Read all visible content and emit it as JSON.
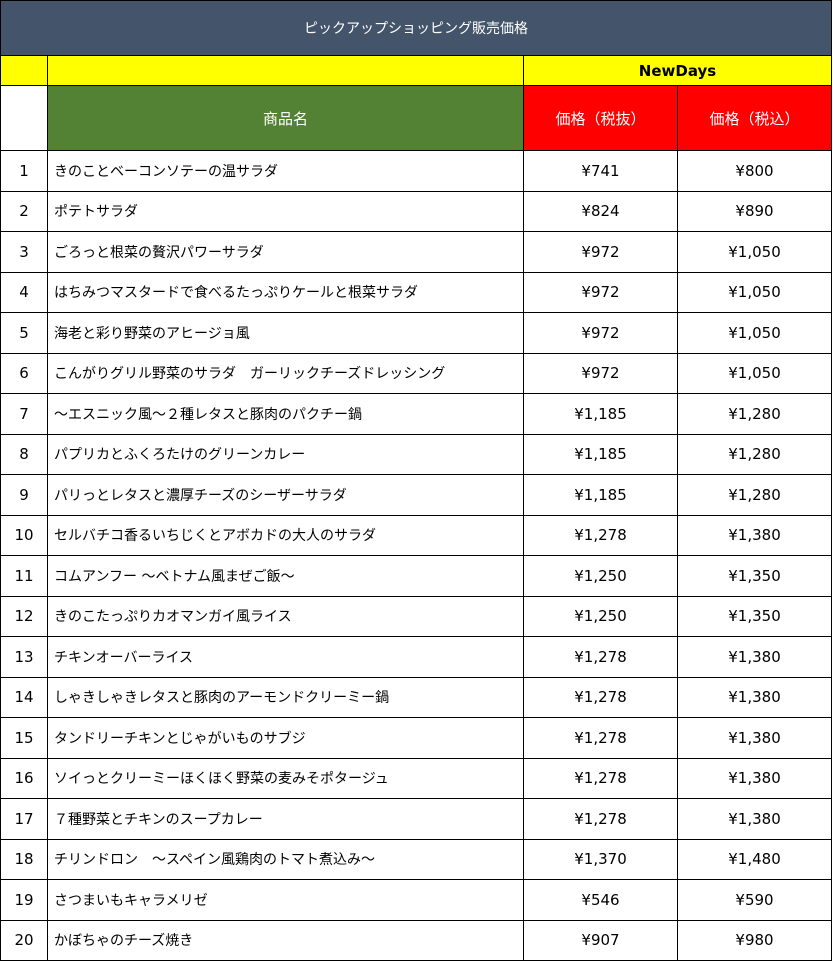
{
  "title": "ピックアップショッピング販売価格",
  "group_header": "NewDays",
  "headers": {
    "name": "商品名",
    "price_excl": "価格（税抜）",
    "price_incl": "価格（税込）"
  },
  "rows": [
    [
      "1",
      "きのことベーコンソテーの温サラダ",
      "¥741",
      "¥800"
    ],
    [
      "2",
      "ポテトサラダ",
      "¥824",
      "¥890"
    ],
    [
      "3",
      "ごろっと根菜の贅沢パワーサラダ",
      "¥972",
      "¥1,050"
    ],
    [
      "4",
      "はちみつマスタードで食べるたっぷりケールと根菜サラダ",
      "¥972",
      "¥1,050"
    ],
    [
      "5",
      "海老と彩り野菜のアヒージョ風",
      "¥972",
      "¥1,050"
    ],
    [
      "6",
      "こんがりグリル野菜のサラダ　ガーリックチーズドレッシング",
      "¥972",
      "¥1,050"
    ],
    [
      "7",
      "～エスニック風～２種レタスと豚肉のパクチー鍋",
      "¥1,185",
      "¥1,280"
    ],
    [
      "8",
      "パプリカとふくろたけのグリーンカレー",
      "¥1,185",
      "¥1,280"
    ],
    [
      "9",
      "パリっとレタスと濃厚チーズのシーザーサラダ",
      "¥1,185",
      "¥1,280"
    ],
    [
      "10",
      "セルバチコ香るいちじくとアボカドの大人のサラダ",
      "¥1,278",
      "¥1,380"
    ],
    [
      "11",
      "コムアンフー ～ベトナム風まぜご飯～",
      "¥1,250",
      "¥1,350"
    ],
    [
      "12",
      "きのこたっぷりカオマンガイ風ライス",
      "¥1,250",
      "¥1,350"
    ],
    [
      "13",
      "チキンオーバーライス",
      "¥1,278",
      "¥1,380"
    ],
    [
      "14",
      "しゃきしゃきレタスと豚肉のアーモンドクリーミー鍋",
      "¥1,278",
      "¥1,380"
    ],
    [
      "15",
      "タンドリーチキンとじゃがいものサブジ",
      "¥1,278",
      "¥1,380"
    ],
    [
      "16",
      "ソイっとクリーミーほくほく野菜の麦みそポタージュ",
      "¥1,278",
      "¥1,380"
    ],
    [
      "17",
      "７種野菜とチキンのスープカレー",
      "¥1,278",
      "¥1,380"
    ],
    [
      "18",
      "チリンドロン　～スペイン風鶏肉のトマト煮込み～",
      "¥1,370",
      "¥1,480"
    ],
    [
      "19",
      "さつまいもキャラメリゼ",
      "¥546",
      "¥590"
    ],
    [
      "20",
      "かぼちゃのチーズ焼き",
      "¥907",
      "¥980"
    ]
  ]
}
